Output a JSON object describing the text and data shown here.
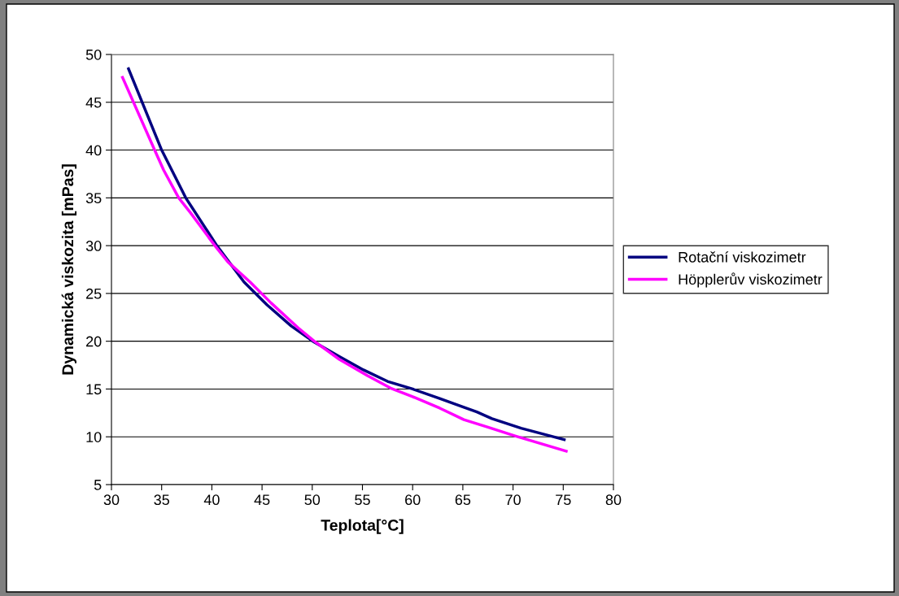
{
  "chart_data": {
    "type": "line",
    "xlabel": "Teplota[°C]",
    "ylabel": "Dynamická viskozita [mPas]",
    "xlim": [
      30,
      80
    ],
    "xticks": [
      30,
      35,
      40,
      45,
      50,
      55,
      60,
      65,
      70,
      75,
      80
    ],
    "ylim": [
      5,
      50
    ],
    "yticks": [
      5,
      10,
      15,
      20,
      25,
      30,
      35,
      40,
      45,
      50
    ],
    "grid": "y",
    "legend": "right",
    "marker": "none",
    "line_style": "solid",
    "series": [
      {
        "name": "Rotační viskozimetr",
        "color": "#000080",
        "x": [
          31.7,
          35.0,
          37.4,
          40.5,
          43.2,
          45.5,
          47.9,
          50.2,
          52.7,
          55.1,
          57.5,
          60.0,
          62.7,
          65.1,
          66.4,
          67.9,
          70.8,
          75.1
        ],
        "values": [
          48.5,
          40.0,
          35.0,
          30.0,
          26.2,
          23.8,
          21.6,
          19.9,
          18.4,
          17.0,
          15.8,
          15.0,
          14.0,
          13.1,
          12.6,
          11.9,
          10.9,
          9.7
        ]
      },
      {
        "name": "Höpplerův viskozimetr",
        "color": "#ff00ff",
        "x": [
          31.1,
          34.3,
          35.2,
          36.7,
          37.9,
          40.3,
          41.6,
          43.8,
          45.9,
          48.6,
          50.2,
          52.7,
          55.5,
          57.8,
          60.0,
          62.7,
          65.1,
          67.5,
          70.2,
          75.3
        ],
        "values": [
          47.6,
          40.0,
          37.9,
          35.0,
          33.4,
          30.0,
          28.3,
          26.2,
          24.0,
          21.4,
          20.0,
          18.1,
          16.4,
          15.1,
          14.2,
          13.0,
          11.8,
          11.0,
          10.1,
          8.5
        ]
      }
    ]
  }
}
